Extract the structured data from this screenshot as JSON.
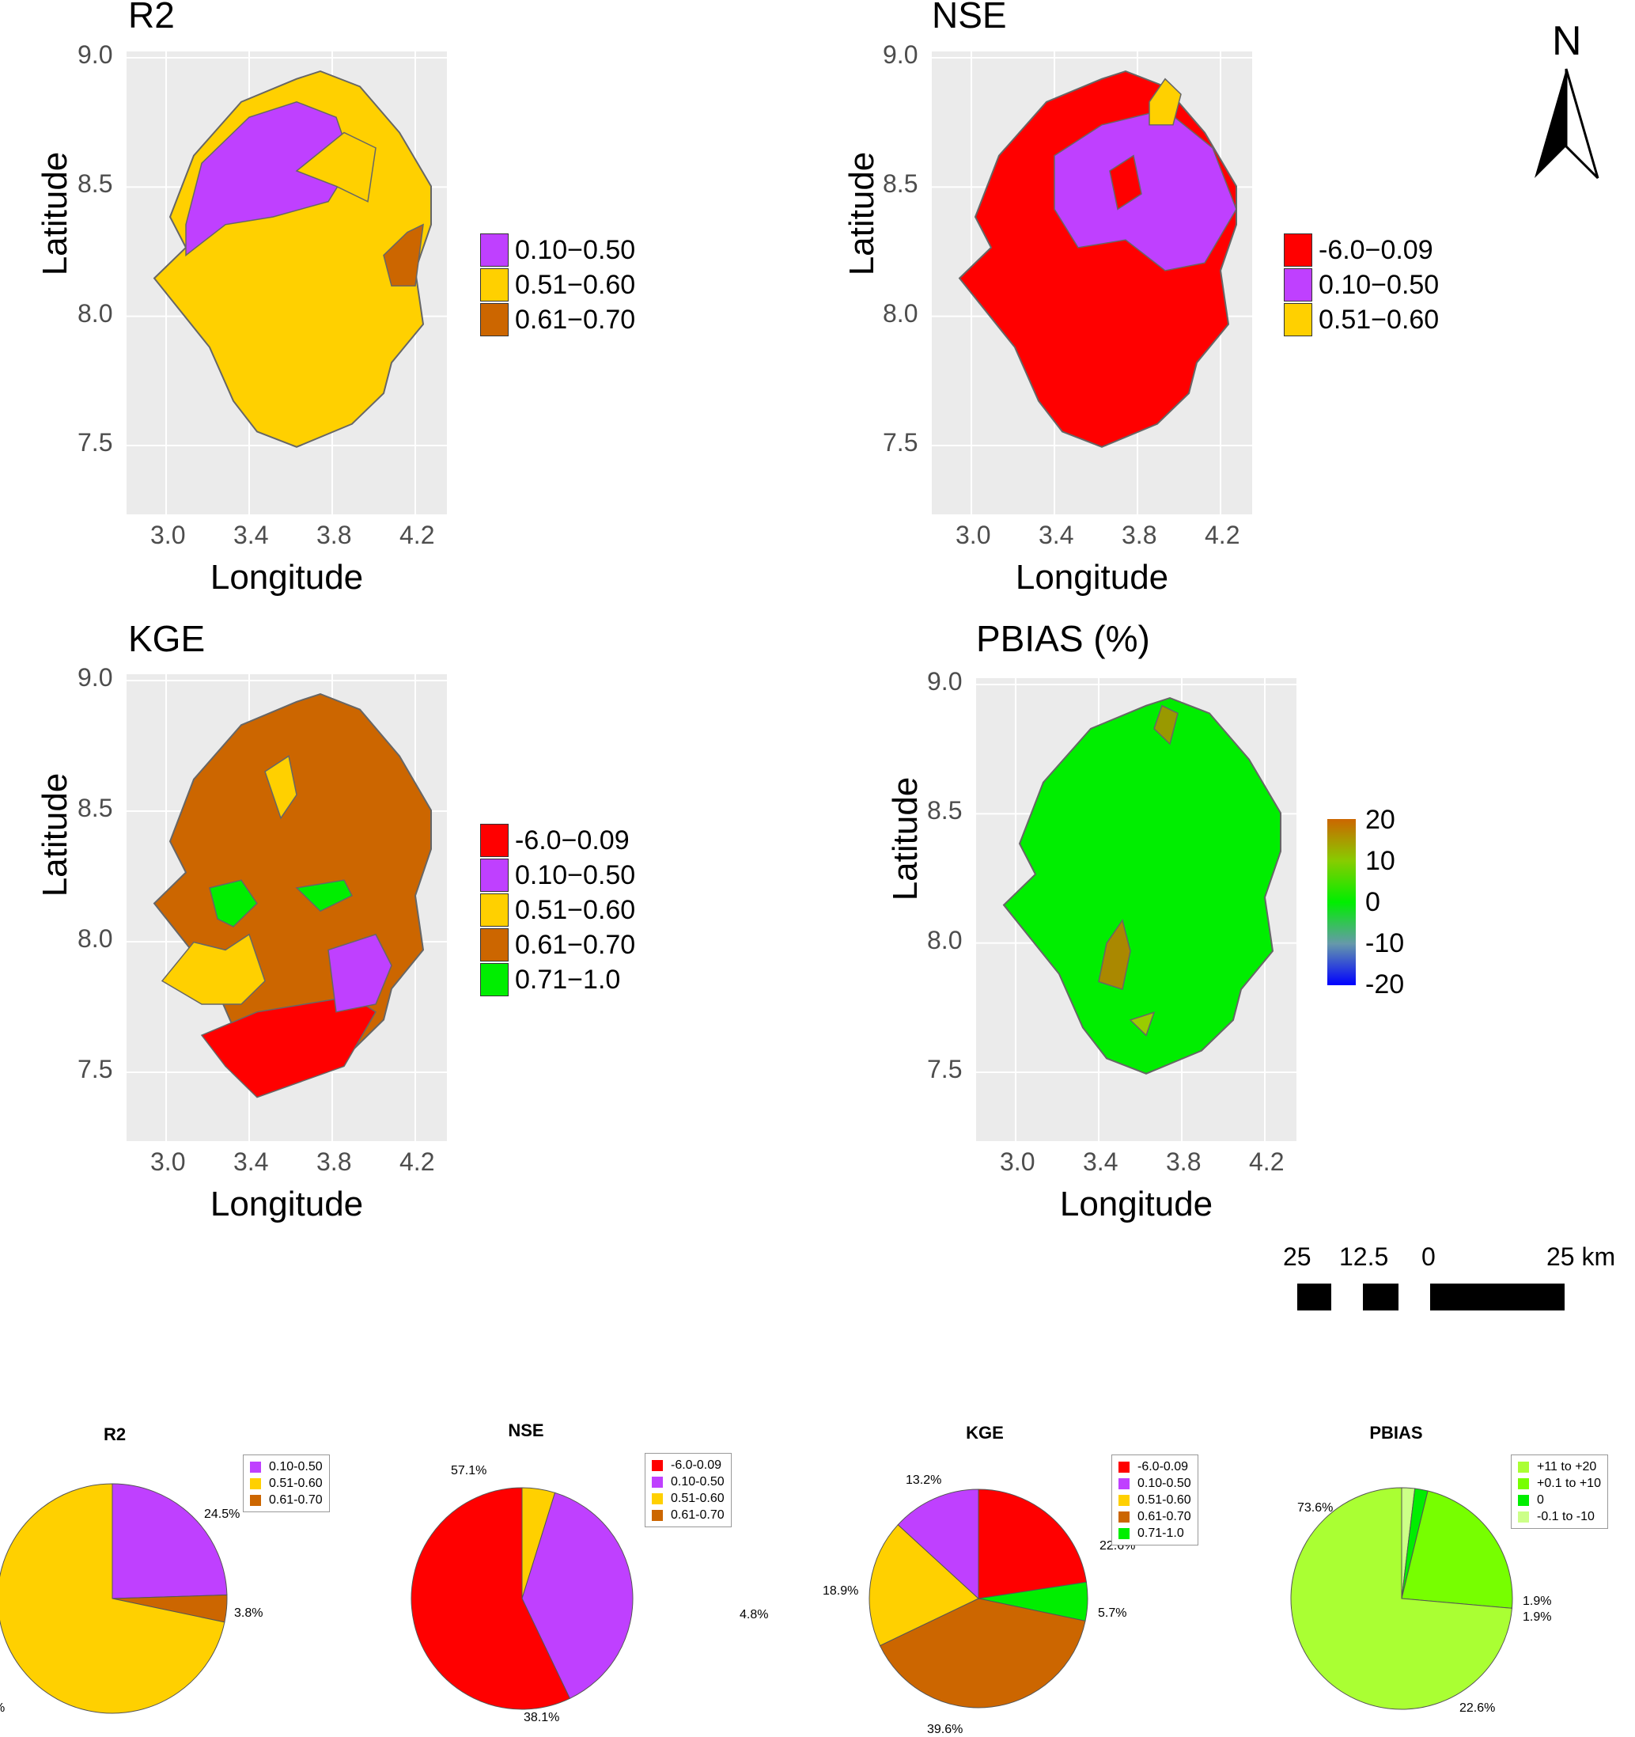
{
  "maps": [
    {
      "id": "r2",
      "title": "R2",
      "x_ticks": [
        "3.0",
        "3.4",
        "3.8",
        "4.2"
      ],
      "y_ticks": [
        "9.0",
        "8.5",
        "8.0",
        "7.5"
      ],
      "xlabel": "Longitude",
      "ylabel": "Latitude",
      "legend": [
        {
          "label": "0.10−0.50",
          "color": "#bf40ff"
        },
        {
          "label": "0.51−0.60",
          "color": "#ffd000"
        },
        {
          "label": "0.61−0.70",
          "color": "#cc6600"
        }
      ]
    },
    {
      "id": "nse",
      "title": "NSE",
      "x_ticks": [
        "3.0",
        "3.4",
        "3.8",
        "4.2"
      ],
      "y_ticks": [
        "9.0",
        "8.5",
        "8.0",
        "7.5"
      ],
      "xlabel": "Longitude",
      "ylabel": "Latitude",
      "legend": [
        {
          "label": "-6.0−0.09",
          "color": "#ff0000"
        },
        {
          "label": "0.10−0.50",
          "color": "#bf40ff"
        },
        {
          "label": "0.51−0.60",
          "color": "#ffd000"
        }
      ]
    },
    {
      "id": "kge",
      "title": "KGE",
      "x_ticks": [
        "3.0",
        "3.4",
        "3.8",
        "4.2"
      ],
      "y_ticks": [
        "9.0",
        "8.5",
        "8.0",
        "7.5"
      ],
      "xlabel": "Longitude",
      "ylabel": "Latitude",
      "legend": [
        {
          "label": "-6.0−0.09",
          "color": "#ff0000"
        },
        {
          "label": "0.10−0.50",
          "color": "#bf40ff"
        },
        {
          "label": "0.51−0.60",
          "color": "#ffd000"
        },
        {
          "label": "0.61−0.70",
          "color": "#cc6600"
        },
        {
          "label": "0.71−1.0",
          "color": "#00ee00"
        }
      ]
    },
    {
      "id": "pbias",
      "title": "PBIAS (%)",
      "x_ticks": [
        "3.0",
        "3.4",
        "3.8",
        "4.2"
      ],
      "y_ticks": [
        "9.0",
        "8.5",
        "8.0",
        "7.5"
      ],
      "xlabel": "Longitude",
      "ylabel": "Latitude",
      "colorbar": [
        "20",
        "10",
        "0",
        "-10",
        "-20"
      ]
    }
  ],
  "north_arrow": "N",
  "scale_bar": {
    "labels": [
      "25",
      "12.5",
      "0",
      "25 km"
    ]
  },
  "chart_data": [
    {
      "type": "pie",
      "title": "R2",
      "legend": [
        {
          "label": "0.10-0.50",
          "color": "#bf40ff"
        },
        {
          "label": "0.51-0.60",
          "color": "#ffd000"
        },
        {
          "label": "0.61-0.70",
          "color": "#cc6600"
        }
      ],
      "slices": [
        {
          "category": "0.10-0.50",
          "value": 24.5,
          "label": "24.5%",
          "color": "#bf40ff"
        },
        {
          "category": "0.61-0.70",
          "value": 3.8,
          "label": "3.8%",
          "color": "#cc6600"
        },
        {
          "category": "0.51-0.60",
          "value": 71.7,
          "label": "%",
          "color": "#ffd000"
        }
      ]
    },
    {
      "type": "pie",
      "title": "NSE",
      "legend": [
        {
          "label": "-6.0-0.09",
          "color": "#ff0000"
        },
        {
          "label": "0.10-0.50",
          "color": "#bf40ff"
        },
        {
          "label": "0.51-0.60",
          "color": "#ffd000"
        },
        {
          "label": "0.61-0.70",
          "color": "#cc6600"
        }
      ],
      "slices": [
        {
          "category": "0.51-0.60",
          "value": 4.8,
          "label": "4.8%",
          "color": "#ffd000"
        },
        {
          "category": "0.10-0.50",
          "value": 38.1,
          "label": "38.1%",
          "color": "#bf40ff"
        },
        {
          "category": "-6.0-0.09",
          "value": 57.1,
          "label": "57.1%",
          "color": "#ff0000"
        }
      ]
    },
    {
      "type": "pie",
      "title": "KGE",
      "legend": [
        {
          "label": "-6.0-0.09",
          "color": "#ff0000"
        },
        {
          "label": "0.10-0.50",
          "color": "#bf40ff"
        },
        {
          "label": "0.51-0.60",
          "color": "#ffd000"
        },
        {
          "label": "0.61-0.70",
          "color": "#cc6600"
        },
        {
          "label": "0.71-1.0",
          "color": "#00ee00"
        }
      ],
      "slices": [
        {
          "category": "-6.0-0.09",
          "value": 22.6,
          "label": "22.6%",
          "color": "#ff0000"
        },
        {
          "category": "0.71-1.0",
          "value": 5.7,
          "label": "5.7%",
          "color": "#00ee00"
        },
        {
          "category": "0.61-0.70",
          "value": 39.6,
          "label": "39.6%",
          "color": "#cc6600"
        },
        {
          "category": "0.51-0.60",
          "value": 18.9,
          "label": "18.9%",
          "color": "#ffd000"
        },
        {
          "category": "0.10-0.50",
          "value": 13.2,
          "label": "13.2%",
          "color": "#bf40ff"
        }
      ]
    },
    {
      "type": "pie",
      "title": "PBIAS",
      "legend": [
        {
          "label": "+11 to +20",
          "color": "#aaff33"
        },
        {
          "label": "+0.1 to +10",
          "color": "#77ff00"
        },
        {
          "label": "0",
          "color": "#00ee00"
        },
        {
          "label": "-0.1 to -10",
          "color": "#ccff88"
        }
      ],
      "slices": [
        {
          "category": "-0.1 to -10",
          "value": 1.9,
          "label": "1.9%",
          "color": "#ccff88"
        },
        {
          "category": "0",
          "value": 1.9,
          "label": "1.9%",
          "color": "#00ee00"
        },
        {
          "category": "+0.1 to +10",
          "value": 22.6,
          "label": "22.6%",
          "color": "#77ff00"
        },
        {
          "category": "+11 to +20",
          "value": 73.6,
          "label": "73.6%",
          "color": "#aaff33"
        }
      ]
    }
  ]
}
